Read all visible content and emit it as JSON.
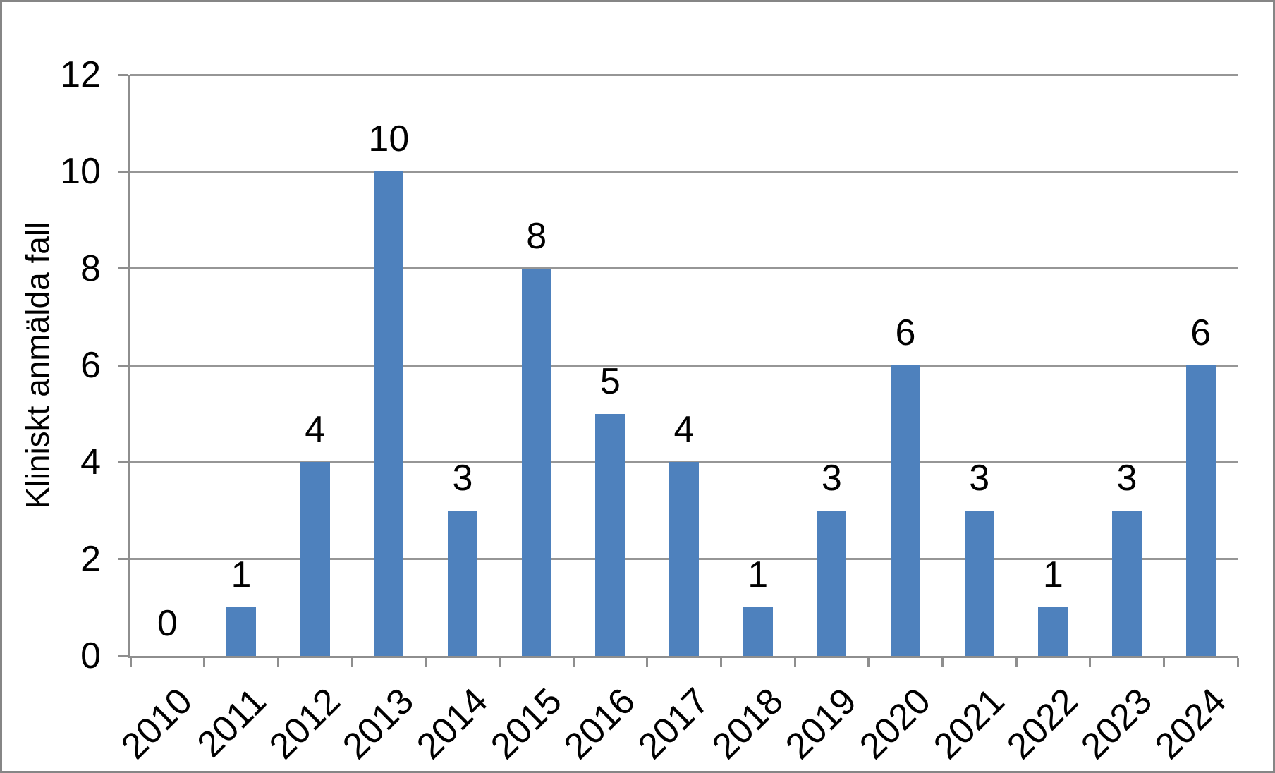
{
  "chart_data": {
    "type": "bar",
    "categories": [
      "2010",
      "2011",
      "2012",
      "2013",
      "2014",
      "2015",
      "2016",
      "2017",
      "2018",
      "2019",
      "2020",
      "2021",
      "2022",
      "2023",
      "2024"
    ],
    "values": [
      0,
      1,
      4,
      10,
      3,
      8,
      5,
      4,
      1,
      3,
      6,
      3,
      1,
      3,
      6
    ],
    "title": "",
    "xlabel": "",
    "ylabel": "Kliniskt anmälda fall",
    "ylim": [
      0,
      12
    ],
    "yticks": [
      0,
      2,
      4,
      6,
      8,
      10,
      12
    ],
    "grid": true,
    "legend": false,
    "data_labels": true,
    "x_tick_rotation_deg": 45,
    "colors": {
      "bar": "#4E81BD",
      "gridline": "#969696",
      "axis": "#8E8E8E",
      "text": "#000000",
      "border": "#868686",
      "background": "#FFFFFF"
    }
  }
}
